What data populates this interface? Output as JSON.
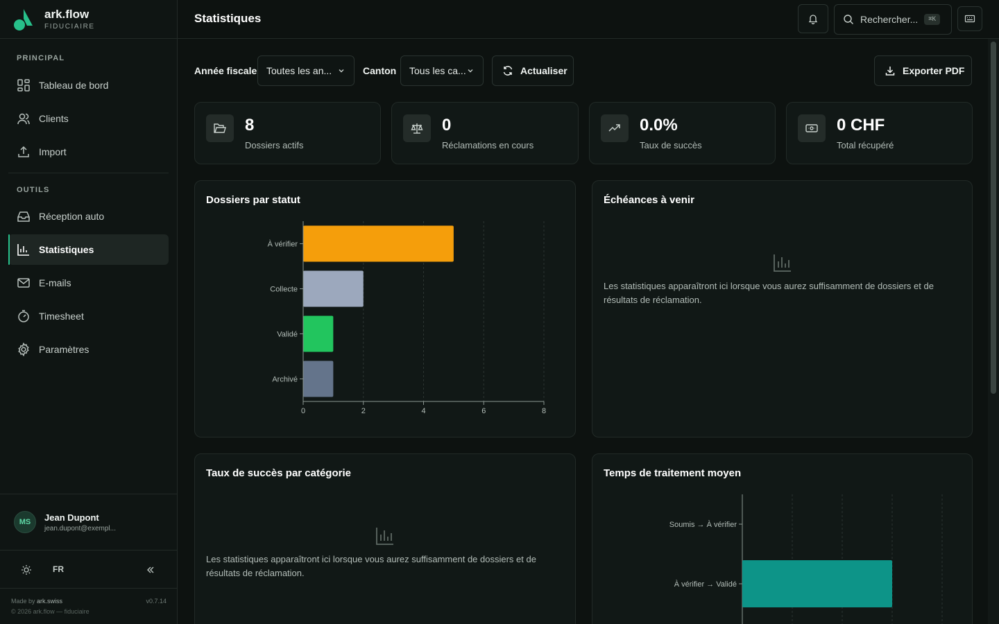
{
  "brand": {
    "name": "ark.flow",
    "subtitle": "FIDUCIAIRE"
  },
  "sidebar": {
    "section_principal": "PRINCIPAL",
    "section_outils": "OUTILS",
    "items": [
      {
        "label": "Tableau de bord",
        "icon": "grid-icon"
      },
      {
        "label": "Clients",
        "icon": "users-icon"
      },
      {
        "label": "Import",
        "icon": "upload-icon"
      },
      {
        "label": "Réception auto",
        "icon": "inbox-icon"
      },
      {
        "label": "Statistiques",
        "icon": "bar-chart-icon",
        "active": true
      },
      {
        "label": "E-mails",
        "icon": "mail-icon"
      },
      {
        "label": "Timesheet",
        "icon": "timer-icon"
      },
      {
        "label": "Paramètres",
        "icon": "gear-icon"
      }
    ],
    "user": {
      "initials": "MS",
      "name": "Jean Dupont",
      "email": "jean.dupont@exempl..."
    },
    "language": "FR",
    "footer": {
      "made_by_prefix": "Made by",
      "made_by": "ark.swiss",
      "version": "v0.7.14",
      "copyright": "© 2026 ark.flow — fiduciaire"
    }
  },
  "header": {
    "title": "Statistiques",
    "search_placeholder": "Rechercher...",
    "search_shortcut": "⌘K"
  },
  "filters": {
    "fiscal_year_label": "Année fiscale",
    "fiscal_year_value": "Toutes les an...",
    "canton_label": "Canton",
    "canton_value": "Tous les ca...",
    "refresh_label": "Actualiser",
    "export_label": "Exporter PDF"
  },
  "stats": [
    {
      "value": "8",
      "label": "Dossiers actifs",
      "icon": "folder-icon"
    },
    {
      "value": "0",
      "label": "Réclamations en cours",
      "icon": "scale-icon"
    },
    {
      "value": "0.0%",
      "label": "Taux de succès",
      "icon": "trending-up-icon"
    },
    {
      "value": "0 CHF",
      "label": "Total récupéré",
      "icon": "banknote-icon"
    }
  ],
  "panels": {
    "dossiers_title": "Dossiers par statut",
    "echeances_title": "Échéances à venir",
    "echeances_empty": "Les statistiques apparaîtront ici lorsque vous aurez suffisamment de dossiers et de résultats de réclamation.",
    "taux_title": "Taux de succès par catégorie",
    "taux_empty": "Les statistiques apparaîtront ici lorsque vous aurez suffisamment de dossiers et de résultats de réclamation.",
    "temps_title": "Temps de traitement moyen"
  },
  "colors": {
    "accent": "#27c08a",
    "a_verifier": "#f59e0b",
    "collecte": "#9ca8bd",
    "valide": "#22c55e",
    "archive": "#64748b",
    "teal": "#0d9488"
  },
  "chart_data": [
    {
      "type": "bar",
      "orientation": "horizontal",
      "categories": [
        "À vérifier",
        "Collecte",
        "Validé",
        "Archivé"
      ],
      "values": [
        5,
        2,
        1,
        1
      ],
      "xlim": [
        0,
        8
      ],
      "xticks": [
        0,
        2,
        4,
        6,
        8
      ],
      "colors": [
        "#f59e0b",
        "#9ca8bd",
        "#22c55e",
        "#64748b"
      ],
      "grid": true
    },
    {
      "type": "bar",
      "orientation": "horizontal",
      "categories": [
        "Soumis → À vérifier",
        "À vérifier → Validé"
      ],
      "values": [
        0,
        3
      ],
      "xlim": [
        0,
        4
      ],
      "colors": [
        "#0d9488",
        "#0d9488"
      ],
      "grid": true
    }
  ]
}
